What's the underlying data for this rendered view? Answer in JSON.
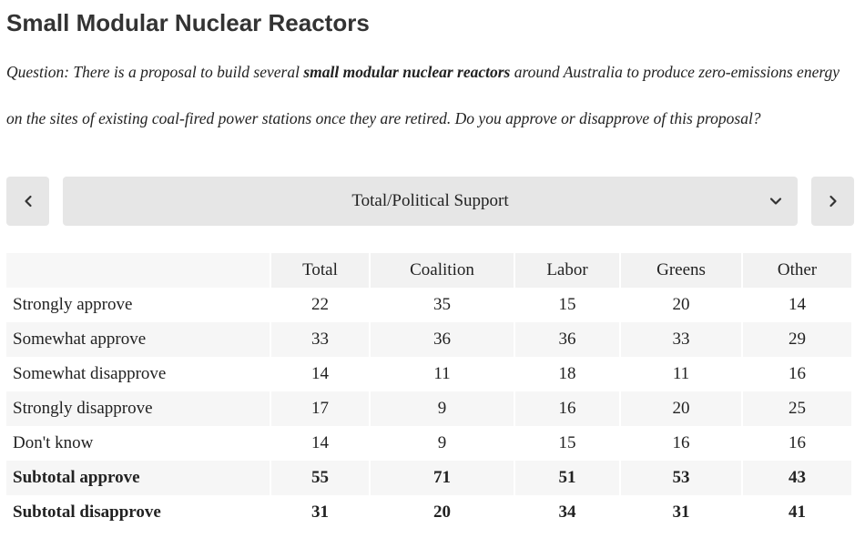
{
  "page": {
    "title": "Small Modular Nuclear Reactors",
    "question": {
      "prefix": "Question:  There is a proposal to build several ",
      "bold": "small modular nuclear reactors",
      "suffix": " around Australia to produce zero-emissions energy on the sites of existing coal-fired power stations once they are retired. Do you approve or disapprove of this proposal?"
    }
  },
  "nav": {
    "prev_icon": "chevron-left-icon",
    "next_icon": "chevron-right-icon",
    "selector": {
      "value": "Total/Political Support",
      "icon": "chevron-down-icon"
    }
  },
  "table": {
    "headers": [
      "",
      "Total",
      "Coalition",
      "Labor",
      "Greens",
      "Other"
    ],
    "rows": [
      {
        "label": "Strongly approve",
        "values": [
          "22",
          "35",
          "15",
          "20",
          "14"
        ]
      },
      {
        "label": "Somewhat approve",
        "values": [
          "33",
          "36",
          "36",
          "33",
          "29"
        ]
      },
      {
        "label": "Somewhat disapprove",
        "values": [
          "14",
          "11",
          "18",
          "11",
          "16"
        ]
      },
      {
        "label": "Strongly disapprove",
        "values": [
          "17",
          "9",
          "16",
          "20",
          "25"
        ]
      },
      {
        "label": "Don't know",
        "values": [
          "14",
          "9",
          "15",
          "16",
          "16"
        ]
      },
      {
        "label": "Subtotal approve",
        "values": [
          "55",
          "71",
          "51",
          "53",
          "43"
        ]
      },
      {
        "label": "Subtotal disapprove",
        "values": [
          "31",
          "20",
          "34",
          "31",
          "41"
        ]
      }
    ]
  },
  "colors": {
    "button_bg": "#e6e6e6",
    "header_bg": "#f2f2f2",
    "stripe_bg": "#f6f6f6",
    "text": "#222222"
  }
}
